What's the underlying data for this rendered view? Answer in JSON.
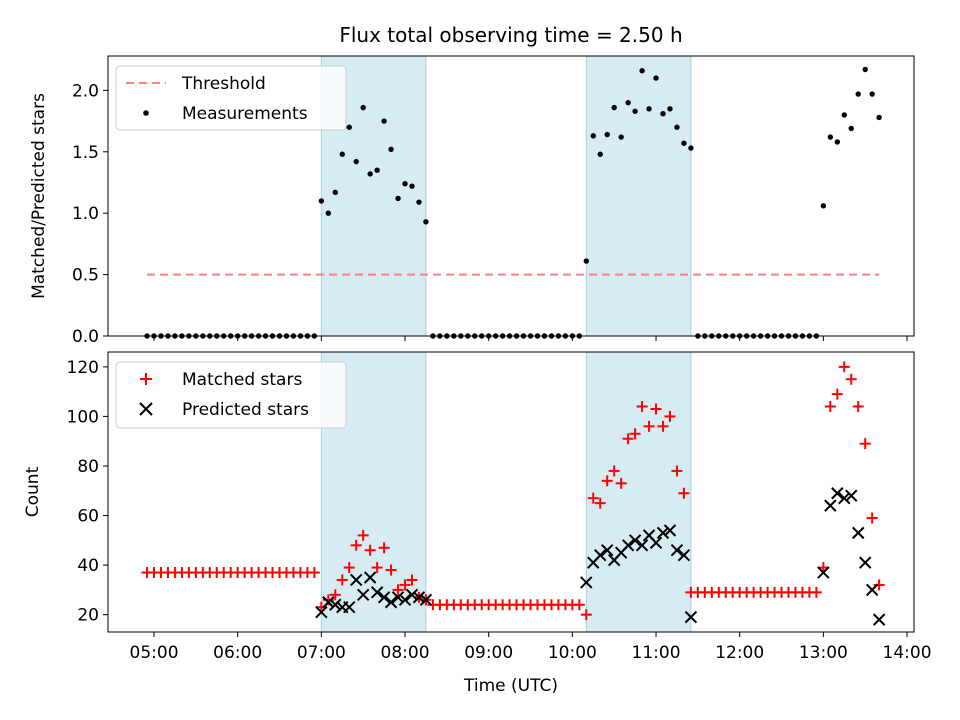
{
  "title": "Flux total observing time = 2.50 h",
  "x_axis": {
    "label": "Time (UTC)",
    "ticks": [
      "05:00",
      "06:00",
      "07:00",
      "08:00",
      "09:00",
      "10:00",
      "11:00",
      "12:00",
      "13:00",
      "14:00"
    ]
  },
  "chart_data": [
    {
      "type": "scatter",
      "title": "Flux total observing time = 2.50 h",
      "xlabel": "",
      "ylabel": "Matched/Predicted stars",
      "xlim": [
        "04:27",
        "14:05"
      ],
      "ylim": [
        0,
        2.28
      ],
      "yticks": [
        0.0,
        0.5,
        1.0,
        1.5,
        2.0
      ],
      "ytick_labels": [
        "0.0",
        "0.5",
        "1.0",
        "1.5",
        "2.0"
      ],
      "legend_position": "top-left",
      "shaded_intervals": [
        [
          "07:00",
          "08:15"
        ],
        [
          "10:10",
          "11:25"
        ]
      ],
      "threshold": {
        "name": "Threshold",
        "value": 0.5,
        "x_range": [
          "04:55",
          "13:40"
        ],
        "color": "#ff7f7f"
      },
      "series": [
        {
          "name": "Measurements",
          "color": "#000000",
          "x": [
            "04:55",
            "05:00",
            "05:05",
            "05:10",
            "05:15",
            "05:20",
            "05:25",
            "05:30",
            "05:35",
            "05:40",
            "05:45",
            "05:50",
            "05:55",
            "06:00",
            "06:05",
            "06:10",
            "06:15",
            "06:20",
            "06:25",
            "06:30",
            "06:35",
            "06:40",
            "06:45",
            "06:50",
            "06:55",
            "07:00",
            "07:05",
            "07:10",
            "07:15",
            "07:20",
            "07:25",
            "07:30",
            "07:35",
            "07:40",
            "07:45",
            "07:50",
            "07:55",
            "08:00",
            "08:05",
            "08:10",
            "08:15",
            "08:20",
            "08:25",
            "08:30",
            "08:35",
            "08:40",
            "08:45",
            "08:50",
            "08:55",
            "09:00",
            "09:05",
            "09:10",
            "09:15",
            "09:20",
            "09:25",
            "09:30",
            "09:35",
            "09:40",
            "09:45",
            "09:50",
            "09:55",
            "10:00",
            "10:05",
            "10:10",
            "10:15",
            "10:20",
            "10:25",
            "10:30",
            "10:35",
            "10:40",
            "10:45",
            "10:50",
            "10:55",
            "11:00",
            "11:05",
            "11:10",
            "11:15",
            "11:20",
            "11:25",
            "11:30",
            "11:35",
            "11:40",
            "11:45",
            "11:50",
            "11:55",
            "12:00",
            "12:05",
            "12:10",
            "12:15",
            "12:20",
            "12:25",
            "12:30",
            "12:35",
            "12:40",
            "12:45",
            "12:50",
            "12:55",
            "13:00",
            "13:05",
            "13:10",
            "13:15",
            "13:20",
            "13:25",
            "13:30",
            "13:35",
            "13:40"
          ],
          "y": [
            0,
            0,
            0,
            0,
            0,
            0,
            0,
            0,
            0,
            0,
            0,
            0,
            0,
            0,
            0,
            0,
            0,
            0,
            0,
            0,
            0,
            0,
            0,
            0,
            0,
            1.1,
            1.0,
            1.17,
            1.48,
            1.7,
            1.42,
            1.86,
            1.32,
            1.35,
            1.75,
            1.52,
            1.12,
            1.24,
            1.22,
            1.09,
            0.93,
            0,
            0,
            0,
            0,
            0,
            0,
            0,
            0,
            0,
            0,
            0,
            0,
            0,
            0,
            0,
            0,
            0,
            0,
            0,
            0,
            0,
            0,
            0.61,
            1.63,
            1.48,
            1.64,
            1.86,
            1.62,
            1.9,
            1.83,
            2.16,
            1.85,
            2.1,
            1.81,
            1.85,
            1.7,
            1.57,
            1.53,
            0,
            0,
            0,
            0,
            0,
            0,
            0,
            0,
            0,
            0,
            0,
            0,
            0,
            0,
            0,
            0,
            0,
            0,
            1.06,
            1.62,
            1.58,
            1.8,
            1.69,
            1.97,
            2.17,
            1.97,
            1.78
          ]
        }
      ]
    },
    {
      "type": "scatter",
      "xlabel": "Time (UTC)",
      "ylabel": "Count",
      "xlim": [
        "04:27",
        "14:05"
      ],
      "ylim": [
        13,
        126
      ],
      "yticks": [
        20,
        40,
        60,
        80,
        100,
        120
      ],
      "ytick_labels": [
        "20",
        "40",
        "60",
        "80",
        "100",
        "120"
      ],
      "legend_position": "top-left",
      "shaded_intervals": [
        [
          "07:00",
          "08:15"
        ],
        [
          "10:10",
          "11:25"
        ]
      ],
      "series": [
        {
          "name": "Matched stars",
          "color": "#ff0000",
          "marker": "plus",
          "x": [
            "04:55",
            "05:00",
            "05:05",
            "05:10",
            "05:15",
            "05:20",
            "05:25",
            "05:30",
            "05:35",
            "05:40",
            "05:45",
            "05:50",
            "05:55",
            "06:00",
            "06:05",
            "06:10",
            "06:15",
            "06:20",
            "06:25",
            "06:30",
            "06:35",
            "06:40",
            "06:45",
            "06:50",
            "06:55",
            "07:00",
            "07:05",
            "07:10",
            "07:15",
            "07:20",
            "07:25",
            "07:30",
            "07:35",
            "07:40",
            "07:45",
            "07:50",
            "07:55",
            "08:00",
            "08:05",
            "08:10",
            "08:15",
            "08:20",
            "08:25",
            "08:30",
            "08:35",
            "08:40",
            "08:45",
            "08:50",
            "08:55",
            "09:00",
            "09:05",
            "09:10",
            "09:15",
            "09:20",
            "09:25",
            "09:30",
            "09:35",
            "09:40",
            "09:45",
            "09:50",
            "09:55",
            "10:00",
            "10:05",
            "10:10",
            "10:15",
            "10:20",
            "10:25",
            "10:30",
            "10:35",
            "10:40",
            "10:45",
            "10:50",
            "10:55",
            "11:00",
            "11:05",
            "11:10",
            "11:15",
            "11:20",
            "11:25",
            "11:30",
            "11:35",
            "11:40",
            "11:45",
            "11:50",
            "11:55",
            "12:00",
            "12:05",
            "12:10",
            "12:15",
            "12:20",
            "12:25",
            "12:30",
            "12:35",
            "12:40",
            "12:45",
            "12:50",
            "12:55",
            "13:00",
            "13:05",
            "13:10",
            "13:15",
            "13:20",
            "13:25",
            "13:30",
            "13:35",
            "13:40"
          ],
          "y": [
            37,
            37,
            37,
            37,
            37,
            37,
            37,
            37,
            37,
            37,
            37,
            37,
            37,
            37,
            37,
            37,
            37,
            37,
            37,
            37,
            37,
            37,
            37,
            37,
            37,
            23,
            26,
            28,
            34,
            39,
            48,
            52,
            46,
            39,
            47,
            38,
            30,
            32,
            34,
            27,
            26,
            24,
            24,
            24,
            24,
            24,
            24,
            24,
            24,
            24,
            24,
            24,
            24,
            24,
            24,
            24,
            24,
            24,
            24,
            24,
            24,
            24,
            24,
            20,
            67,
            65,
            74,
            78,
            73,
            91,
            93,
            104,
            96,
            103,
            96,
            100,
            78,
            69,
            29,
            29,
            29,
            29,
            29,
            29,
            29,
            29,
            29,
            29,
            29,
            29,
            29,
            29,
            29,
            29,
            29,
            29,
            29,
            39,
            104,
            109,
            120,
            115,
            104,
            89,
            59,
            32
          ]
        },
        {
          "name": "Predicted stars",
          "color": "#000000",
          "marker": "x",
          "x": [
            "07:00",
            "07:05",
            "07:10",
            "07:15",
            "07:20",
            "07:25",
            "07:30",
            "07:35",
            "07:40",
            "07:45",
            "07:50",
            "07:55",
            "08:00",
            "08:05",
            "08:10",
            "08:15",
            "10:10",
            "10:15",
            "10:20",
            "10:25",
            "10:30",
            "10:35",
            "10:40",
            "10:45",
            "10:50",
            "10:55",
            "11:00",
            "11:05",
            "11:10",
            "11:15",
            "11:20",
            "11:25",
            "13:00",
            "13:05",
            "13:10",
            "13:15",
            "13:20",
            "13:25",
            "13:30",
            "13:35",
            "13:40"
          ],
          "y": [
            21,
            25,
            24,
            23,
            23,
            34,
            28,
            35,
            29,
            27,
            25,
            27,
            26,
            28,
            27,
            26,
            33,
            41,
            44,
            46,
            42,
            45,
            48,
            50,
            48,
            52,
            49,
            53,
            54,
            46,
            44,
            19,
            37,
            64,
            69,
            67,
            68,
            53,
            41,
            30,
            18
          ]
        }
      ]
    }
  ]
}
